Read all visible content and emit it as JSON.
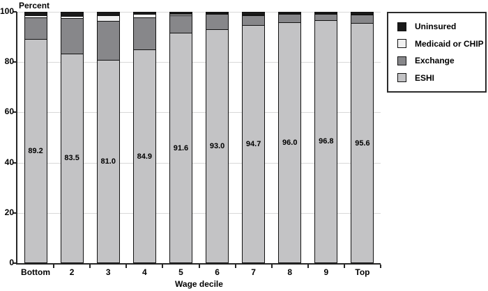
{
  "chart_data": {
    "type": "bar",
    "stacked": true,
    "title": "Percent",
    "xlabel": "Wage decile",
    "categories": [
      "Bottom",
      "2",
      "3",
      "4",
      "5",
      "6",
      "7",
      "8",
      "9",
      "Top"
    ],
    "series": [
      {
        "name": "ESHI",
        "color": "#c3c3c5",
        "values": [
          89.2,
          83.5,
          81.0,
          84.9,
          91.6,
          93.0,
          94.7,
          96.0,
          96.8,
          95.6
        ]
      },
      {
        "name": "Exchange",
        "color": "#87878a",
        "values": [
          8.7,
          14.0,
          15.5,
          12.9,
          7.1,
          6.1,
          3.9,
          3.2,
          2.4,
          3.5
        ]
      },
      {
        "name": "Medicaid or CHIP",
        "color": "#f0f0f0",
        "values": [
          0.8,
          0.9,
          2.2,
          1.5,
          0.5,
          0.3,
          0.2,
          0.2,
          0.2,
          0.2
        ]
      },
      {
        "name": "Uninsured",
        "color": "#1a1a1a",
        "values": [
          1.3,
          1.6,
          1.3,
          0.7,
          0.8,
          0.6,
          1.2,
          0.6,
          0.6,
          0.7
        ]
      }
    ],
    "bar_labels": [
      "89.2",
      "83.5",
      "81.0",
      "84.9",
      "91.6",
      "93.0",
      "94.7",
      "96.0",
      "96.8",
      "95.6"
    ],
    "labeled_series": "ESHI",
    "ylim": [
      0,
      100
    ],
    "yticks": [
      "0",
      "20",
      "40",
      "60",
      "80",
      "100"
    ],
    "grid": true,
    "legend_position": "top-right",
    "legend": [
      {
        "label": "Uninsured",
        "color": "#1a1a1a"
      },
      {
        "label": "Medicaid or CHIP",
        "color": "#f0f0f0"
      },
      {
        "label": "Exchange",
        "color": "#87878a"
      },
      {
        "label": "ESHI",
        "color": "#c3c3c5"
      }
    ]
  },
  "colors": {
    "axis": "#262626",
    "gridline": "#d8d8d8",
    "segment_border": "#111111",
    "background": "#ffffff",
    "text": "#000000"
  }
}
